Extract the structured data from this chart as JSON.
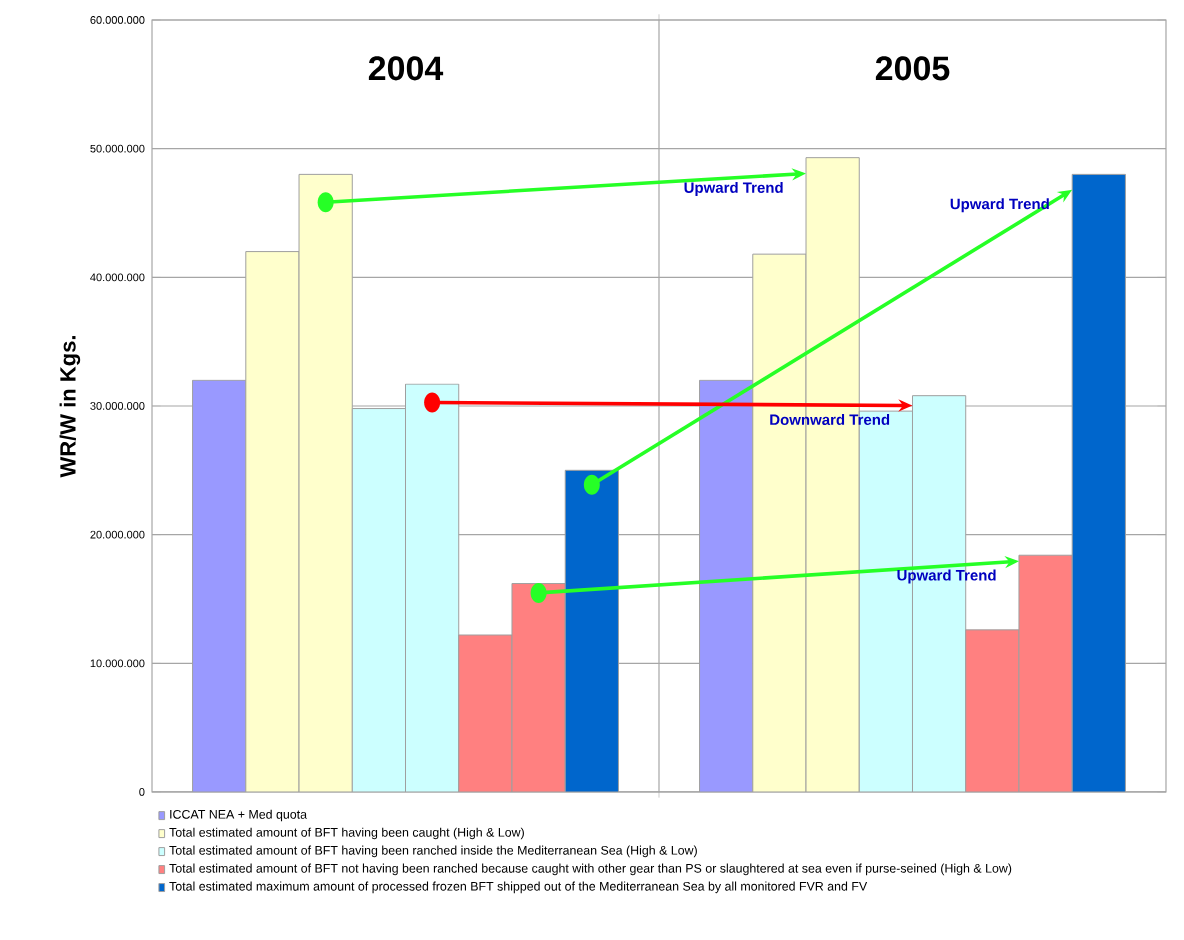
{
  "chart_data": {
    "type": "bar",
    "ylabel": "WR/W in Kgs.",
    "categories": [
      "2004",
      "2005"
    ],
    "series": [
      {
        "name": "ICCAT NEA + Med quota",
        "color": "#9999ff",
        "values": [
          32000000,
          32000000
        ]
      },
      {
        "name": "Total estimated amount of BFT having been caught (High & Low)",
        "color": "#ffffcc",
        "values": [
          42000000,
          41800000
        ]
      },
      {
        "color": "#ffffcc",
        "values": [
          48000000,
          49300000
        ]
      },
      {
        "name": "Total estimated amount of BFT having been ranched inside the Mediterranean Sea (High & Low)",
        "color": "#ccffff",
        "values": [
          29800000,
          29600000
        ]
      },
      {
        "color": "#ccffff",
        "values": [
          31700000,
          30800000
        ]
      },
      {
        "name": "Total estimated amount of BFT not having been ranched because caught with other gear than PS or slaughtered at sea even if purse-seined (High & Low)",
        "color": "#ff8080",
        "values": [
          12200000,
          12600000
        ]
      },
      {
        "color": "#ff8080",
        "values": [
          16200000,
          18400000
        ]
      },
      {
        "name": "Total estimated maximum amount of processed frozen BFT shipped out of the Mediterranean Sea by all monitored FVR and FV",
        "color": "#0066cc",
        "values": [
          25000000,
          48000000
        ]
      }
    ],
    "ylim": [
      0,
      60000000
    ],
    "yticks": [
      0,
      {
        "value": 10000000,
        "label": "10.000.000"
      },
      {
        "value": 20000000,
        "label": "20.000.000"
      },
      {
        "value": 30000000,
        "label": "30.000.000"
      },
      {
        "value": 40000000,
        "label": "40.000.000"
      },
      {
        "value": 50000000,
        "label": "50.000.000"
      },
      {
        "value": 60000000,
        "label": "60.000.000"
      }
    ],
    "grid": true,
    "legend": "bottom",
    "annotations": [
      "Upward Trend",
      "Upward Trend",
      "Downward Trend",
      "Upward Trend"
    ]
  }
}
